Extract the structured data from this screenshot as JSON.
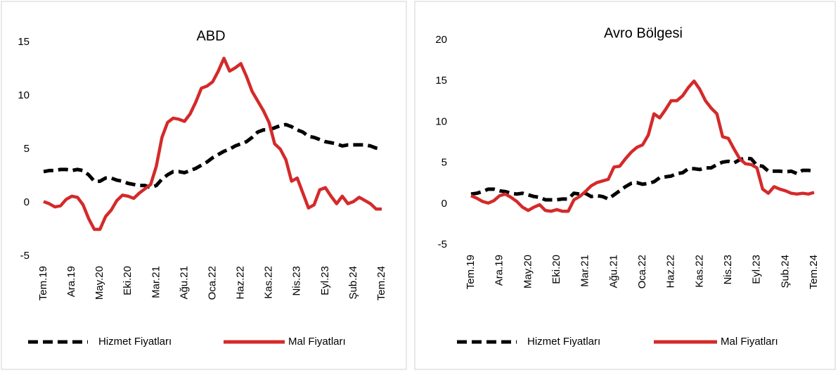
{
  "chart_data": [
    {
      "type": "line",
      "title": "ABD",
      "categories": [
        "Tem.19",
        null,
        null,
        null,
        null,
        "Ara.19",
        null,
        null,
        null,
        null,
        "May.20",
        null,
        null,
        null,
        null,
        "Eki.20",
        null,
        null,
        null,
        null,
        "Mar.21",
        null,
        null,
        null,
        null,
        "Ağu.21",
        null,
        null,
        null,
        null,
        "Oca.22",
        null,
        null,
        null,
        null,
        "Haz.22",
        null,
        null,
        null,
        null,
        "Kas.22",
        null,
        null,
        null,
        null,
        "Nis.23",
        null,
        null,
        null,
        null,
        "Eyl.23",
        null,
        null,
        null,
        null,
        "Şub.24",
        null,
        null,
        null,
        null,
        "Tem.24"
      ],
      "ylim": [
        -5,
        15
      ],
      "yticks": [
        -5,
        0,
        5,
        10,
        15
      ],
      "grid": false,
      "series": [
        {
          "name": "Hizmet Fiyatları",
          "color": "#000000",
          "line_style": "dashed",
          "values": [
            2.9,
            3.0,
            3.0,
            3.1,
            3.1,
            3.0,
            3.1,
            3.0,
            2.6,
            2.0,
            2.0,
            2.3,
            2.3,
            2.1,
            2.0,
            1.8,
            1.7,
            1.6,
            1.6,
            1.4,
            1.6,
            2.2,
            2.6,
            2.9,
            2.9,
            2.8,
            3.0,
            3.2,
            3.5,
            3.8,
            4.2,
            4.5,
            4.8,
            5.0,
            5.3,
            5.5,
            5.7,
            6.1,
            6.6,
            6.8,
            6.8,
            7.0,
            7.2,
            7.3,
            7.1,
            6.8,
            6.6,
            6.2,
            6.1,
            5.9,
            5.7,
            5.6,
            5.5,
            5.3,
            5.4,
            5.4,
            5.4,
            5.4,
            5.3,
            5.1,
            5.0
          ]
        },
        {
          "name": "Mal Fiyatları",
          "color": "#d42a2a",
          "line_style": "solid",
          "values": [
            0.1,
            -0.1,
            -0.4,
            -0.3,
            0.3,
            0.6,
            0.5,
            -0.2,
            -1.5,
            -2.5,
            -2.5,
            -1.3,
            -0.7,
            0.2,
            0.7,
            0.6,
            0.4,
            0.9,
            1.3,
            1.7,
            3.4,
            6.1,
            7.5,
            7.9,
            7.8,
            7.6,
            8.3,
            9.4,
            10.7,
            10.9,
            11.3,
            12.3,
            13.5,
            12.3,
            12.6,
            13.0,
            11.8,
            10.4,
            9.5,
            8.6,
            7.5,
            5.5,
            5.0,
            4.0,
            2.0,
            2.3,
            0.9,
            -0.5,
            -0.2,
            1.2,
            1.4,
            0.6,
            -0.1,
            0.6,
            -0.1,
            0.1,
            0.5,
            0.2,
            -0.1,
            -0.6,
            -0.6
          ]
        }
      ]
    },
    {
      "type": "line",
      "title": "Avro Bölgesi",
      "categories": [
        "Tem.19",
        null,
        null,
        null,
        null,
        "Ara.19",
        null,
        null,
        null,
        null,
        "May.20",
        null,
        null,
        null,
        null,
        "Eki.20",
        null,
        null,
        null,
        null,
        "Mar.21",
        null,
        null,
        null,
        null,
        "Ağu.21",
        null,
        null,
        null,
        null,
        "Oca.22",
        null,
        null,
        null,
        null,
        "Haz.22",
        null,
        null,
        null,
        null,
        "Kas.22",
        null,
        null,
        null,
        null,
        "Nis.23",
        null,
        null,
        null,
        null,
        "Eyl.23",
        null,
        null,
        null,
        null,
        "Şub.24",
        null,
        null,
        null,
        null,
        "Tem.24"
      ],
      "ylim": [
        -5,
        20
      ],
      "yticks": [
        -5,
        0,
        5,
        10,
        15,
        20
      ],
      "grid": false,
      "series": [
        {
          "name": "Hizmet Fiyatları",
          "color": "#000000",
          "line_style": "dashed",
          "values": [
            1.2,
            1.3,
            1.5,
            1.8,
            1.8,
            1.6,
            1.5,
            1.3,
            1.2,
            1.3,
            1.1,
            0.9,
            0.8,
            0.5,
            0.5,
            0.5,
            0.6,
            0.6,
            1.3,
            1.2,
            1.3,
            0.9,
            1.0,
            0.9,
            0.6,
            1.1,
            1.6,
            2.1,
            2.5,
            2.6,
            2.4,
            2.5,
            2.7,
            3.2,
            3.3,
            3.4,
            3.7,
            3.8,
            4.3,
            4.3,
            4.2,
            4.4,
            4.4,
            4.8,
            5.1,
            5.2,
            5.0,
            5.4,
            5.6,
            5.5,
            4.7,
            4.6,
            4.0,
            4.0,
            4.0,
            3.9,
            4.0,
            3.7,
            4.1,
            4.1,
            4.0
          ]
        },
        {
          "name": "Mal Fiyatları",
          "color": "#d42a2a",
          "line_style": "solid",
          "values": [
            1.0,
            0.7,
            0.3,
            0.1,
            0.4,
            1.0,
            1.2,
            0.8,
            0.3,
            -0.4,
            -0.8,
            -0.4,
            -0.1,
            -0.8,
            -0.9,
            -0.7,
            -0.9,
            -0.9,
            0.5,
            0.9,
            1.5,
            2.2,
            2.6,
            2.8,
            3.0,
            4.5,
            4.6,
            5.5,
            6.3,
            6.9,
            7.2,
            8.4,
            11.0,
            10.5,
            11.5,
            12.6,
            12.6,
            13.2,
            14.2,
            15.0,
            14.0,
            12.6,
            11.7,
            11.0,
            8.2,
            8.0,
            6.7,
            5.5,
            4.9,
            4.8,
            4.4,
            1.8,
            1.3,
            2.1,
            1.8,
            1.6,
            1.3,
            1.2,
            1.3,
            1.2,
            1.4
          ]
        }
      ]
    }
  ]
}
